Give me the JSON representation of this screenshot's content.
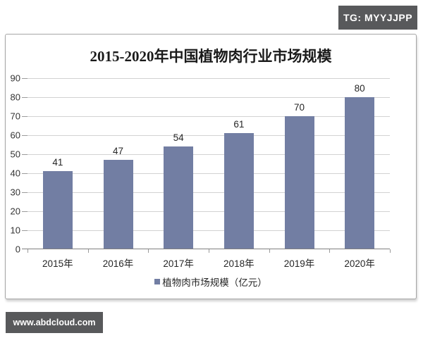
{
  "badges": {
    "top": {
      "text": "TG: MYYJJPP",
      "bg": "#58595B",
      "color": "#FFFFFF"
    },
    "bottom": {
      "text": "www.abdcloud.com",
      "bg": "#58595B",
      "color": "#FFFFFF"
    }
  },
  "chart_data": {
    "type": "bar",
    "title": "2015-2020年中国植物肉行业市场规模",
    "categories": [
      "2015年",
      "2016年",
      "2017年",
      "2018年",
      "2019年",
      "2020年"
    ],
    "values": [
      41,
      47,
      54,
      61,
      70,
      80
    ],
    "series": [
      {
        "name": "植物肉市场规模（亿元）",
        "values": [
          41,
          47,
          54,
          61,
          70,
          80
        ]
      }
    ],
    "legend_label": "植物肉市场规模（亿元）",
    "legend_position": "bottom",
    "xlabel": "",
    "ylabel": "",
    "ylim": [
      0,
      90
    ],
    "yticks": [
      0,
      10,
      20,
      30,
      40,
      50,
      60,
      70,
      80,
      90
    ],
    "grid": true,
    "data_labels": true,
    "bar_color": "#727EA3",
    "grid_color": "#D2D2D2",
    "axis_color": "#808080"
  }
}
